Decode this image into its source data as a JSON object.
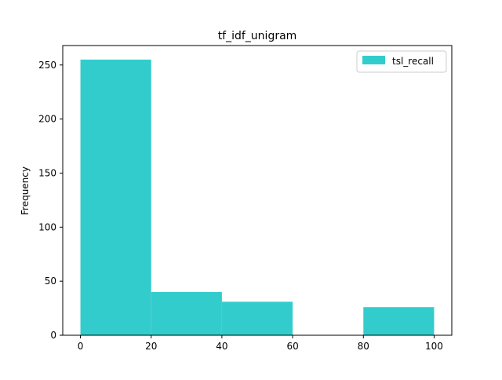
{
  "chart_data": {
    "type": "bar",
    "subtype": "histogram",
    "title": "tf_idf_unigram",
    "xlabel": "",
    "ylabel": "Frequency",
    "xlim": [
      -5,
      105
    ],
    "ylim": [
      0,
      268
    ],
    "x_ticks": [
      0,
      20,
      40,
      60,
      80,
      100
    ],
    "y_ticks": [
      0,
      50,
      100,
      150,
      200,
      250
    ],
    "grid": false,
    "legend_position": "top-right",
    "bins": [
      {
        "start": 0,
        "end": 20,
        "count": 255
      },
      {
        "start": 20,
        "end": 40,
        "count": 40
      },
      {
        "start": 40,
        "end": 60,
        "count": 31
      },
      {
        "start": 60,
        "end": 80,
        "count": 0
      },
      {
        "start": 80,
        "end": 100,
        "count": 26
      }
    ],
    "series": [
      {
        "name": "tsl_recall",
        "color": "#33cccc"
      }
    ]
  }
}
